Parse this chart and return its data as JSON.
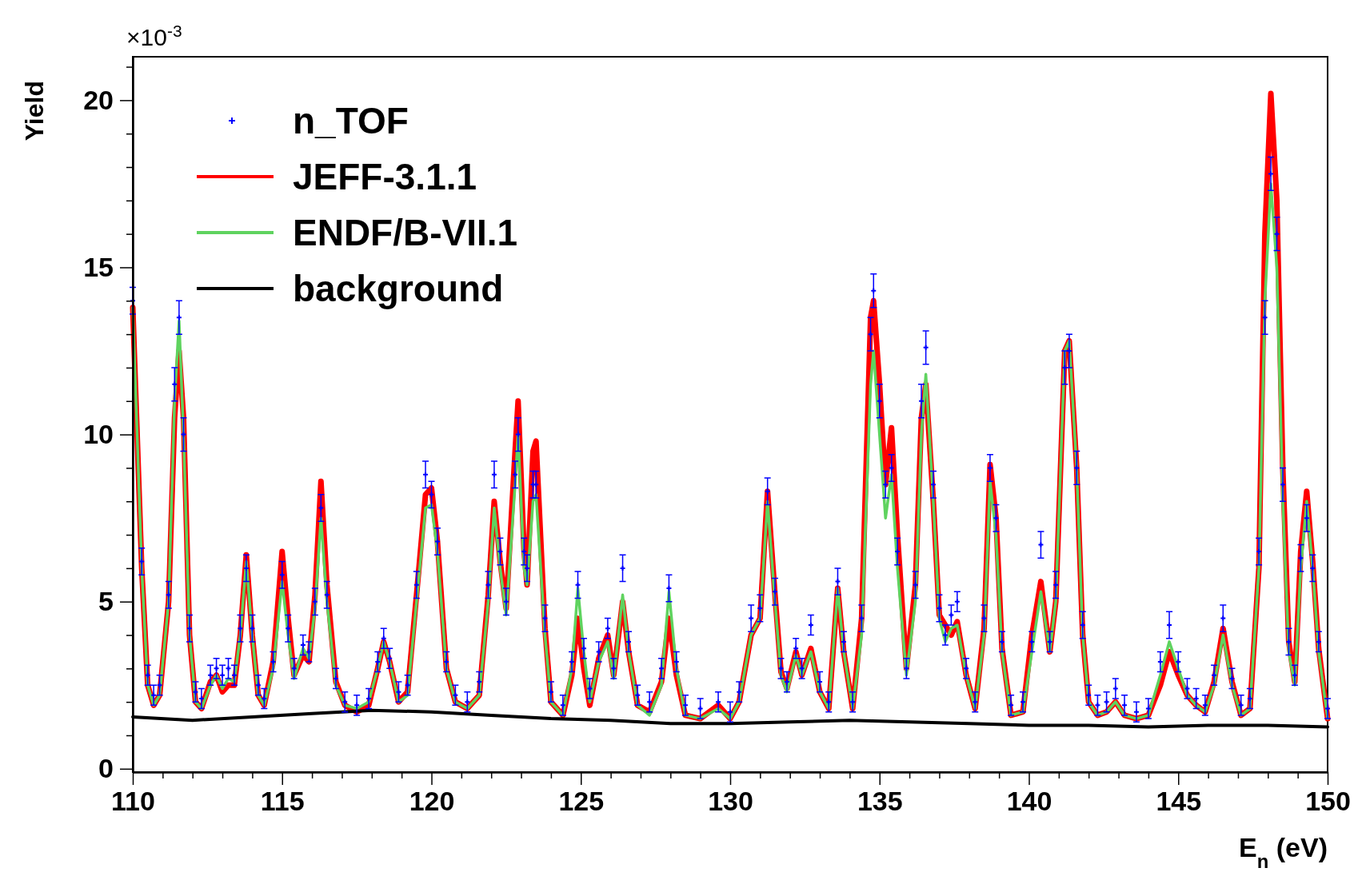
{
  "chart_data": {
    "type": "line",
    "xlabel": "E$_{n}$ (eV)",
    "ylabel": "Yield",
    "annotations": [
      "×10$^{-3}$"
    ],
    "xlim": [
      110,
      150
    ],
    "ylim": [
      -0.1,
      21.3
    ],
    "xticks": [
      110,
      {
        "value": 111,
        "label": null
      },
      {
        "value": 112,
        "label": null
      },
      {
        "value": 113,
        "label": null
      },
      {
        "value": 114,
        "label": null
      },
      115,
      {
        "value": 116,
        "label": null
      },
      {
        "value": 117,
        "label": null
      },
      {
        "value": 118,
        "label": null
      },
      {
        "value": 119,
        "label": null
      },
      120,
      {
        "value": 121,
        "label": null
      },
      {
        "value": 122,
        "label": null
      },
      {
        "value": 123,
        "label": null
      },
      {
        "value": 124,
        "label": null
      },
      125,
      {
        "value": 126,
        "label": null
      },
      {
        "value": 127,
        "label": null
      },
      {
        "value": 128,
        "label": null
      },
      {
        "value": 129,
        "label": null
      },
      130,
      {
        "value": 131,
        "label": null
      },
      {
        "value": 132,
        "label": null
      },
      {
        "value": 133,
        "label": null
      },
      {
        "value": 134,
        "label": null
      },
      135,
      {
        "value": 136,
        "label": null
      },
      {
        "value": 137,
        "label": null
      },
      {
        "value": 138,
        "label": null
      },
      {
        "value": 139,
        "label": null
      },
      140,
      {
        "value": 141,
        "label": null
      },
      {
        "value": 142,
        "label": null
      },
      {
        "value": 143,
        "label": null
      },
      {
        "value": 144,
        "label": null
      },
      145,
      {
        "value": 146,
        "label": null
      },
      {
        "value": 147,
        "label": null
      },
      {
        "value": 148,
        "label": null
      },
      {
        "value": 149,
        "label": null
      },
      150
    ],
    "yticks": [
      0,
      {
        "value": 1,
        "label": null
      },
      {
        "value": 2,
        "label": null
      },
      {
        "value": 3,
        "label": null
      },
      {
        "value": 4,
        "label": null
      },
      5,
      {
        "value": 6,
        "label": null
      },
      {
        "value": 7,
        "label": null
      },
      {
        "value": 8,
        "label": null
      },
      {
        "value": 9,
        "label": null
      },
      10,
      {
        "value": 11,
        "label": null
      },
      {
        "value": 12,
        "label": null
      },
      {
        "value": 13,
        "label": null
      },
      {
        "value": 14,
        "label": null
      },
      15,
      {
        "value": 16,
        "label": null
      },
      {
        "value": 17,
        "label": null
      },
      {
        "value": 18,
        "label": null
      },
      {
        "value": 19,
        "label": null
      },
      20,
      {
        "value": 21,
        "label": null
      }
    ],
    "legend": "top left",
    "grid": false,
    "x": [
      110.0,
      110.3,
      110.5,
      110.7,
      110.9,
      111.2,
      111.4,
      111.55,
      111.7,
      111.9,
      112.1,
      112.3,
      112.6,
      112.8,
      113.0,
      113.2,
      113.4,
      113.6,
      113.8,
      114.0,
      114.2,
      114.4,
      114.7,
      115.0,
      115.2,
      115.4,
      115.7,
      115.9,
      116.1,
      116.3,
      116.5,
      116.8,
      117.1,
      117.5,
      117.9,
      118.2,
      118.4,
      118.6,
      118.9,
      119.2,
      119.5,
      119.8,
      120.0,
      120.2,
      120.5,
      120.8,
      121.2,
      121.6,
      121.9,
      122.1,
      122.3,
      122.5,
      122.8,
      122.9,
      123.1,
      123.2,
      123.4,
      123.5,
      123.8,
      124.0,
      124.4,
      124.7,
      124.9,
      125.1,
      125.3,
      125.6,
      125.9,
      126.1,
      126.4,
      126.6,
      126.9,
      127.3,
      127.7,
      127.95,
      128.2,
      128.5,
      129.0,
      129.6,
      130.0,
      130.3,
      130.7,
      131.0,
      131.25,
      131.5,
      131.7,
      131.9,
      132.2,
      132.4,
      132.7,
      133.0,
      133.3,
      133.6,
      133.8,
      134.1,
      134.4,
      134.7,
      134.8,
      135.0,
      135.2,
      135.4,
      135.6,
      135.9,
      136.2,
      136.4,
      136.55,
      136.8,
      137.0,
      137.2,
      137.4,
      137.6,
      137.9,
      138.2,
      138.5,
      138.7,
      138.9,
      139.1,
      139.4,
      139.8,
      140.1,
      140.4,
      140.7,
      140.9,
      141.2,
      141.35,
      141.6,
      141.8,
      142.0,
      142.3,
      142.6,
      142.9,
      143.2,
      143.6,
      144.0,
      144.4,
      144.7,
      145.0,
      145.3,
      145.6,
      145.9,
      146.2,
      146.5,
      146.8,
      147.1,
      147.4,
      147.7,
      147.9,
      148.1,
      148.3,
      148.5,
      148.7,
      148.9,
      149.1,
      149.3,
      149.5,
      149.7,
      150.0
    ],
    "series": [
      {
        "name": "n_TOF",
        "type": "scatter",
        "marker": "cross",
        "color": "#0000ff",
        "values": [
          14.0,
          6.2,
          2.8,
          2.2,
          2.5,
          5.2,
          11.5,
          13.5,
          10,
          4.2,
          2.3,
          2.1,
          2.8,
          3.0,
          2.8,
          3.0,
          2.8,
          4.2,
          6.0,
          4.2,
          2.5,
          2.1,
          3.2,
          5.8,
          4.2,
          3.0,
          3.7,
          3.5,
          5.0,
          7.8,
          5.2,
          2.7,
          2.0,
          1.9,
          2.1,
          3.2,
          3.9,
          3.3,
          2.3,
          2.5,
          5.5,
          8.8,
          8.2,
          6.8,
          3.2,
          2.2,
          2.0,
          2.6,
          5.5,
          8.8,
          6.5,
          5.0,
          8.8,
          10.0,
          6.5,
          6.0,
          8.5,
          8.5,
          4.5,
          2.3,
          1.9,
          3.2,
          5.5,
          3.6,
          2.4,
          3.5,
          4.2,
          3.0,
          6.0,
          3.8,
          2.2,
          2.0,
          3.0,
          5.4,
          3.2,
          1.9,
          1.8,
          2.0,
          1.7,
          2.3,
          4.5,
          4.8,
          8.3,
          5.3,
          3.0,
          2.6,
          3.6,
          3.0,
          4.3,
          2.6,
          2.0,
          5.6,
          3.8,
          2.0,
          4.5,
          13.0,
          14.3,
          11,
          8.5,
          9.0,
          6.5,
          3.0,
          5.5,
          11.0,
          12.6,
          8.5,
          4.8,
          4.0,
          4.6,
          5.0,
          3.0,
          2.0,
          4.5,
          9.0,
          7.5,
          3.8,
          1.9,
          2.0,
          3.8,
          6.7,
          3.8,
          5.5,
          12.0,
          12.5,
          9,
          4.3,
          2.2,
          1.9,
          2.0,
          2.4,
          1.9,
          1.7,
          1.8,
          3.2,
          4.3,
          3.2,
          2.4,
          2.1,
          1.9,
          2.8,
          4.5,
          2.7,
          1.9,
          2.1,
          6.5,
          13.5,
          17.8,
          16,
          8.5,
          3.8,
          2.8,
          6.3,
          7.5,
          6.0,
          3.8,
          1.8
        ],
        "errors": [
          0.4,
          0.4,
          0.3,
          0.3,
          0.3,
          0.4,
          0.5,
          0.5,
          0.5,
          0.4,
          0.3,
          0.3,
          0.3,
          0.3,
          0.3,
          0.3,
          0.3,
          0.4,
          0.4,
          0.4,
          0.3,
          0.3,
          0.3,
          0.4,
          0.4,
          0.3,
          0.3,
          0.3,
          0.4,
          0.4,
          0.4,
          0.3,
          0.3,
          0.3,
          0.3,
          0.3,
          0.3,
          0.3,
          0.3,
          0.3,
          0.4,
          0.4,
          0.4,
          0.4,
          0.3,
          0.3,
          0.3,
          0.3,
          0.4,
          0.4,
          0.4,
          0.4,
          0.4,
          0.5,
          0.4,
          0.4,
          0.4,
          0.4,
          0.4,
          0.3,
          0.3,
          0.3,
          0.4,
          0.3,
          0.3,
          0.3,
          0.3,
          0.3,
          0.4,
          0.3,
          0.3,
          0.3,
          0.3,
          0.4,
          0.3,
          0.3,
          0.3,
          0.3,
          0.3,
          0.3,
          0.4,
          0.4,
          0.4,
          0.4,
          0.3,
          0.3,
          0.3,
          0.3,
          0.3,
          0.3,
          0.3,
          0.4,
          0.3,
          0.3,
          0.4,
          0.5,
          0.5,
          0.5,
          0.4,
          0.4,
          0.4,
          0.3,
          0.4,
          0.5,
          0.5,
          0.4,
          0.4,
          0.3,
          0.3,
          0.3,
          0.3,
          0.3,
          0.4,
          0.4,
          0.4,
          0.3,
          0.3,
          0.3,
          0.3,
          0.4,
          0.3,
          0.4,
          0.5,
          0.5,
          0.5,
          0.4,
          0.3,
          0.3,
          0.3,
          0.3,
          0.3,
          0.3,
          0.3,
          0.3,
          0.4,
          0.3,
          0.3,
          0.3,
          0.3,
          0.3,
          0.4,
          0.3,
          0.3,
          0.3,
          0.4,
          0.5,
          0.5,
          0.5,
          0.5,
          0.4,
          0.3,
          0.4,
          0.4,
          0.4,
          0.3,
          0.3
        ]
      },
      {
        "name": "JEFF-3.1.1",
        "color": "#ff0000",
        "values": [
          13.8,
          6,
          2.5,
          1.9,
          2.2,
          5,
          10.5,
          12.5,
          10.5,
          4,
          2.0,
          1.8,
          2.6,
          2.8,
          2.3,
          2.5,
          2.5,
          4,
          6.4,
          4,
          2.2,
          1.9,
          3.2,
          6.5,
          4.5,
          2.8,
          3.4,
          3.2,
          5.2,
          8.6,
          5.5,
          2.6,
          1.9,
          1.7,
          1.9,
          3,
          3.8,
          3.2,
          2.0,
          2.3,
          5.2,
          8.2,
          8.4,
          6.8,
          3,
          2.0,
          1.8,
          2.2,
          5.2,
          8.0,
          6.2,
          4.8,
          9.5,
          11.0,
          6.5,
          5.5,
          9.5,
          9.8,
          4.2,
          2.0,
          1.6,
          2.8,
          4.5,
          3.0,
          1.9,
          3.3,
          4.0,
          2.8,
          5.0,
          3.5,
          1.9,
          1.7,
          2.6,
          4.5,
          2.8,
          1.6,
          1.5,
          1.9,
          1.5,
          2,
          4,
          4.5,
          8.3,
          5.2,
          2.9,
          2.4,
          3.5,
          2.8,
          3.6,
          2.3,
          1.8,
          5.4,
          3.5,
          1.8,
          4.5,
          13.5,
          14.0,
          11.5,
          8.5,
          10.2,
          7,
          3.0,
          5.5,
          10.5,
          11.5,
          8,
          4.6,
          4.3,
          4.0,
          4.4,
          2.8,
          1.8,
          4.2,
          9.1,
          7.5,
          3.6,
          1.6,
          1.7,
          4.0,
          5.6,
          3.5,
          5,
          12.5,
          12.8,
          9,
          4,
          2.0,
          1.6,
          1.7,
          2.0,
          1.6,
          1.5,
          1.6,
          2.5,
          3.5,
          2.8,
          2.2,
          1.9,
          1.7,
          2.6,
          4.2,
          2.6,
          1.6,
          1.8,
          6,
          16,
          20.2,
          17,
          9,
          3.8,
          2.6,
          6.5,
          8.3,
          6.2,
          3.6,
          1.5
        ]
      },
      {
        "name": "ENDF/B-VII.1",
        "color": "#5fd35f",
        "values": [
          13.8,
          6,
          2.5,
          1.9,
          2.2,
          5,
          11,
          13.4,
          10,
          4,
          2.0,
          1.8,
          2.5,
          2.8,
          2.4,
          2.7,
          2.6,
          4,
          6.2,
          4,
          2.2,
          1.9,
          3,
          5.6,
          4,
          2.7,
          3.6,
          3.3,
          4.8,
          7.5,
          5,
          2.5,
          1.9,
          1.8,
          2.0,
          3,
          3.8,
          3.2,
          2.0,
          2.2,
          5,
          7.8,
          7.9,
          6.5,
          3,
          2.0,
          1.8,
          2.2,
          5,
          7.8,
          6,
          4.6,
          8.5,
          10.0,
          6,
          5.5,
          8,
          8.2,
          4,
          2.0,
          1.6,
          3,
          5.4,
          3.5,
          2.0,
          3.2,
          3.8,
          2.7,
          5.2,
          3.5,
          1.9,
          1.6,
          2.5,
          5.3,
          3,
          1.6,
          1.5,
          1.8,
          1.5,
          2,
          4,
          4.5,
          8.0,
          5,
          2.8,
          2.3,
          3.4,
          2.8,
          3.5,
          2.3,
          1.8,
          5.4,
          3.5,
          1.8,
          4,
          11.5,
          12.5,
          10,
          7.5,
          8.8,
          6,
          2.8,
          5,
          10,
          11.8,
          8,
          4.5,
          3.8,
          4.2,
          4.3,
          2.8,
          1.8,
          4,
          8.6,
          7,
          3.5,
          1.6,
          1.7,
          3.5,
          5.3,
          3.5,
          5,
          12.5,
          12.8,
          9,
          4,
          2.0,
          1.6,
          1.7,
          2.0,
          1.6,
          1.5,
          1.6,
          2.8,
          3.8,
          3.0,
          2.2,
          1.9,
          1.7,
          2.5,
          4.0,
          2.5,
          1.6,
          1.8,
          6,
          14,
          17.5,
          15,
          8,
          3.5,
          2.5,
          6,
          8.0,
          6,
          3.5,
          1.5
        ]
      },
      {
        "name": "background",
        "color": "#000000",
        "x": [
          110,
          112,
          114,
          116,
          118,
          120,
          122,
          124,
          126,
          128,
          130,
          132,
          134,
          136,
          138,
          140,
          142,
          144,
          146,
          148,
          150
        ],
        "values": [
          1.55,
          1.45,
          1.55,
          1.65,
          1.75,
          1.7,
          1.6,
          1.5,
          1.45,
          1.35,
          1.35,
          1.4,
          1.45,
          1.4,
          1.35,
          1.3,
          1.3,
          1.25,
          1.3,
          1.3,
          1.25
        ]
      }
    ]
  }
}
